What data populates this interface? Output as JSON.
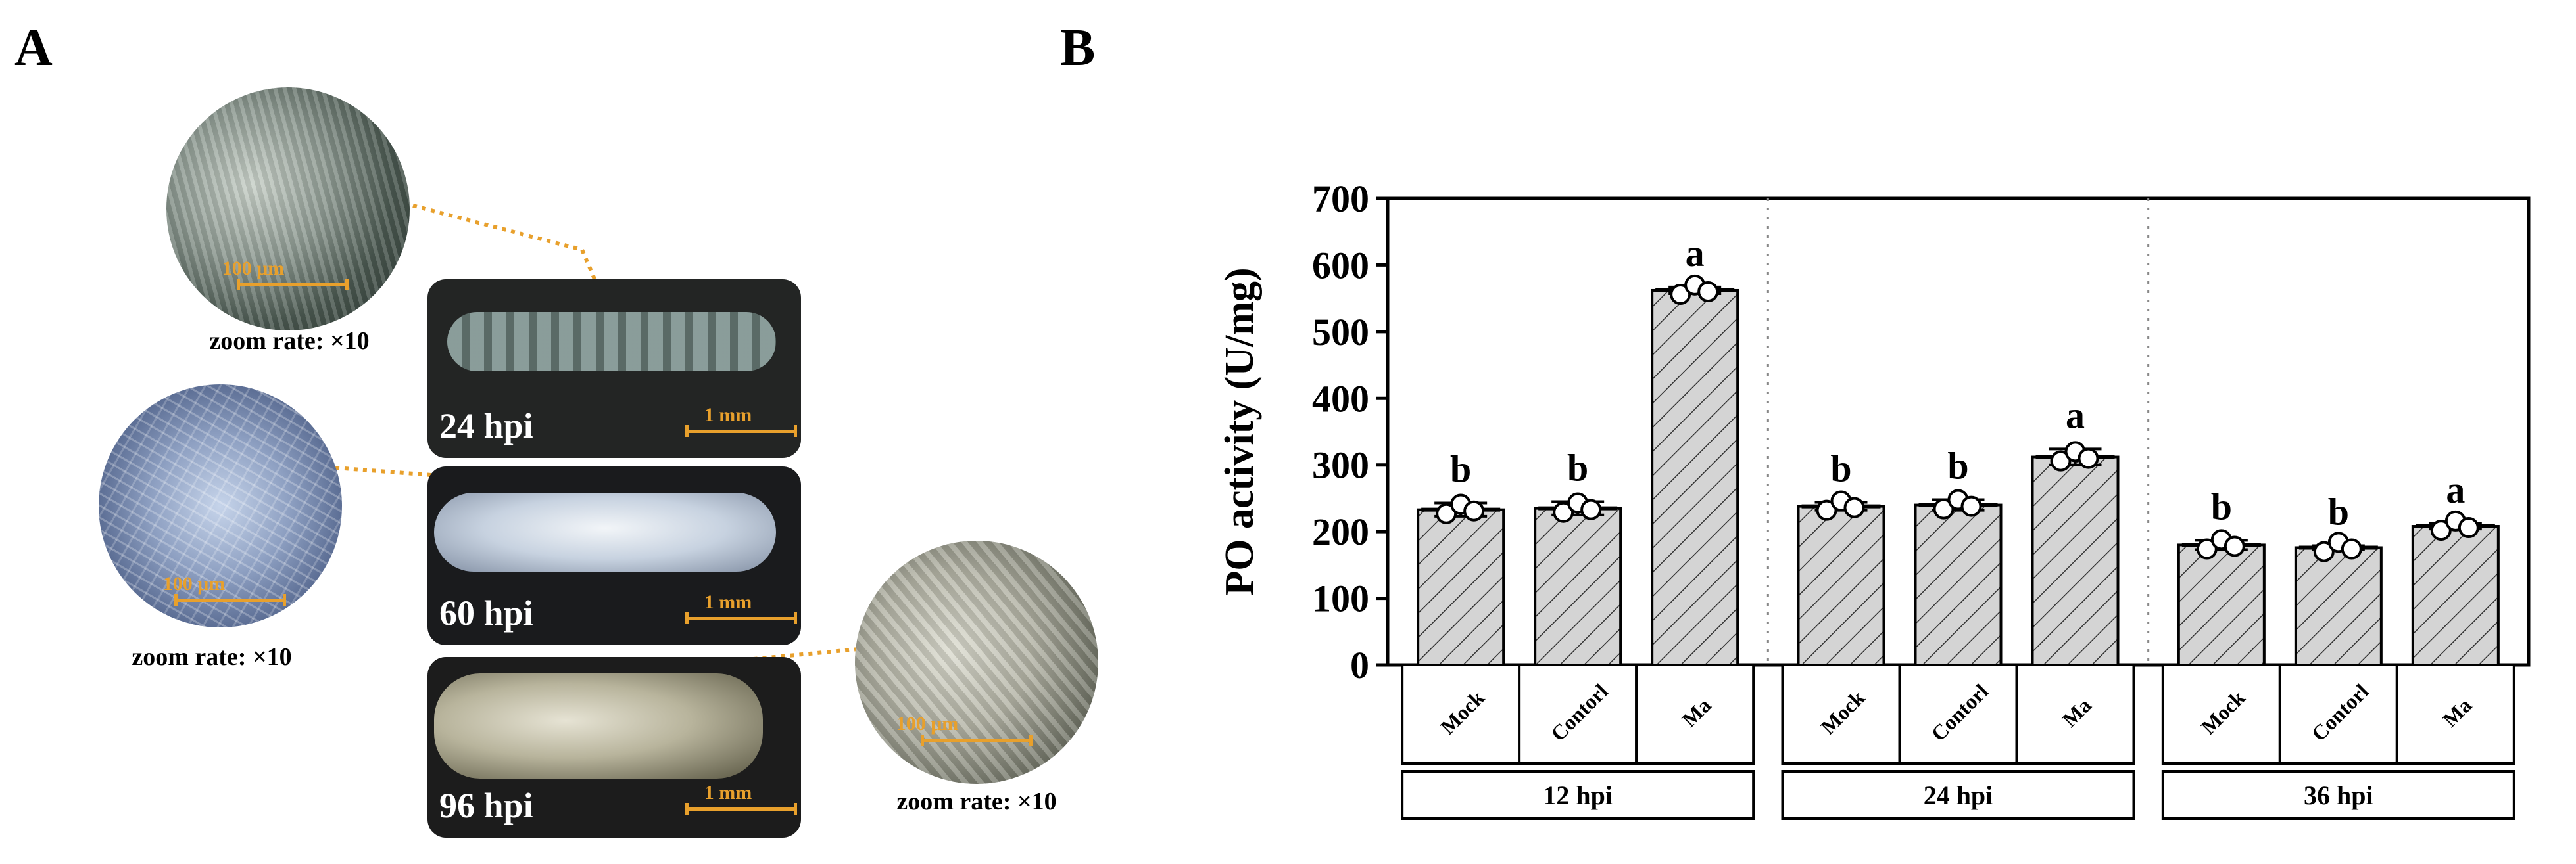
{
  "panel_a": {
    "letter": "A",
    "photos": [
      {
        "label": "24 hpi",
        "scale_label": "1 mm"
      },
      {
        "label": "60 hpi",
        "scale_label": "1 mm"
      },
      {
        "label": "96 hpi",
        "scale_label": "1 mm"
      }
    ],
    "zooms": [
      {
        "scale_label": "100 μm",
        "caption": "zoom rate: ×10"
      },
      {
        "scale_label": "100 μm",
        "caption": "zoom rate: ×10"
      },
      {
        "scale_label": "100 μm",
        "caption": "zoom rate: ×10"
      }
    ]
  },
  "panel_b": {
    "letter": "B"
  },
  "chart_data": {
    "type": "bar",
    "ylabel": "PO activity (U/mg)",
    "ylim": [
      0,
      700
    ],
    "yticks": [
      "0",
      "100",
      "200",
      "300",
      "400",
      "500",
      "600",
      "700"
    ],
    "groups": [
      {
        "name": "12 hpi",
        "categories": [
          "Mock",
          "Contorl",
          "Ma"
        ],
        "values": [
          233,
          235,
          562
        ],
        "errors": [
          10,
          10,
          5
        ],
        "letters": [
          "b",
          "b",
          "a"
        ]
      },
      {
        "name": "24 hpi",
        "categories": [
          "Mock",
          "Contorl",
          "Ma"
        ],
        "values": [
          238,
          240,
          312
        ],
        "errors": [
          6,
          8,
          12
        ],
        "letters": [
          "b",
          "b",
          "a"
        ]
      },
      {
        "name": "36 hpi",
        "categories": [
          "Mock",
          "Contorl",
          "Ma"
        ],
        "values": [
          180,
          176,
          208
        ],
        "errors": [
          7,
          3,
          4
        ],
        "letters": [
          "b",
          "b",
          "a"
        ]
      }
    ],
    "colors": {
      "bar_fill": "#d4d4d4",
      "hatch": "#333333",
      "leader": "#e8a02c"
    }
  }
}
